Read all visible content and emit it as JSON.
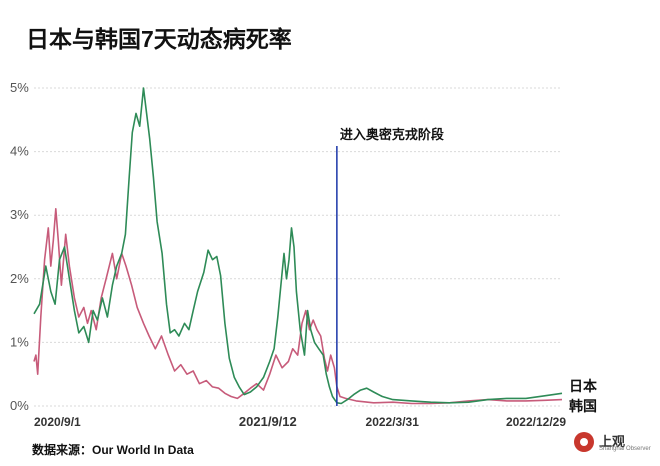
{
  "title": "日本与韩国7天动态病死率",
  "source": "数据来源：Our World In Data",
  "logo": {
    "name": "上观",
    "sub": "Shanghai Observer"
  },
  "colors": {
    "japan": "#2e8b57",
    "korea": "#c75b7a",
    "marker": "#1a35a8",
    "grid": "#d9d9d9"
  },
  "chart_data": {
    "type": "line",
    "title": "日本与韩国7天动态病死率",
    "x_ticks": [
      "2020/9/1",
      "2021/9/12",
      "2022/3/31",
      "2022/12/29"
    ],
    "y_ticks": [
      "0%",
      "1%",
      "2%",
      "3%",
      "4%",
      "5%"
    ],
    "ylim": [
      0,
      5.3
    ],
    "xlim": [
      "2020-09-01",
      "2022-12-29"
    ],
    "grid": true,
    "annotation": {
      "label": "进入奥密克戎阶段",
      "x": "2022-01-01"
    },
    "series": [
      {
        "name": "日本",
        "points": [
          [
            "2020-09-01",
            1.45
          ],
          [
            "2020-09-10",
            1.6
          ],
          [
            "2020-09-20",
            2.2
          ],
          [
            "2020-09-28",
            1.8
          ],
          [
            "2020-10-05",
            1.6
          ],
          [
            "2020-10-12",
            2.3
          ],
          [
            "2020-10-20",
            2.5
          ],
          [
            "2020-10-28",
            2.0
          ],
          [
            "2020-11-05",
            1.5
          ],
          [
            "2020-11-12",
            1.15
          ],
          [
            "2020-11-20",
            1.25
          ],
          [
            "2020-11-28",
            1.0
          ],
          [
            "2020-12-05",
            1.5
          ],
          [
            "2020-12-12",
            1.35
          ],
          [
            "2020-12-20",
            1.7
          ],
          [
            "2020-12-28",
            1.4
          ],
          [
            "2021-01-05",
            1.9
          ],
          [
            "2021-01-12",
            2.2
          ],
          [
            "2021-01-20",
            2.4
          ],
          [
            "2021-01-26",
            2.7
          ],
          [
            "2021-02-01",
            3.6
          ],
          [
            "2021-02-06",
            4.3
          ],
          [
            "2021-02-12",
            4.6
          ],
          [
            "2021-02-18",
            4.4
          ],
          [
            "2021-02-24",
            5.0
          ],
          [
            "2021-03-01",
            4.6
          ],
          [
            "2021-03-06",
            4.2
          ],
          [
            "2021-03-12",
            3.6
          ],
          [
            "2021-03-18",
            2.9
          ],
          [
            "2021-03-26",
            2.4
          ],
          [
            "2021-04-02",
            1.6
          ],
          [
            "2021-04-08",
            1.15
          ],
          [
            "2021-04-15",
            1.2
          ],
          [
            "2021-04-22",
            1.1
          ],
          [
            "2021-05-01",
            1.3
          ],
          [
            "2021-05-08",
            1.2
          ],
          [
            "2021-05-15",
            1.5
          ],
          [
            "2021-05-22",
            1.8
          ],
          [
            "2021-06-01",
            2.1
          ],
          [
            "2021-06-08",
            2.45
          ],
          [
            "2021-06-15",
            2.3
          ],
          [
            "2021-06-22",
            2.35
          ],
          [
            "2021-06-28",
            2.05
          ],
          [
            "2021-07-05",
            1.3
          ],
          [
            "2021-07-12",
            0.75
          ],
          [
            "2021-07-20",
            0.45
          ],
          [
            "2021-07-28",
            0.3
          ],
          [
            "2021-08-05",
            0.18
          ],
          [
            "2021-08-15",
            0.22
          ],
          [
            "2021-08-25",
            0.3
          ],
          [
            "2021-09-05",
            0.45
          ],
          [
            "2021-09-15",
            0.7
          ],
          [
            "2021-09-22",
            0.9
          ],
          [
            "2021-09-28",
            1.4
          ],
          [
            "2021-10-04",
            2.0
          ],
          [
            "2021-10-08",
            2.4
          ],
          [
            "2021-10-12",
            2.0
          ],
          [
            "2021-10-16",
            2.3
          ],
          [
            "2021-10-20",
            2.8
          ],
          [
            "2021-10-24",
            2.5
          ],
          [
            "2021-10-28",
            1.8
          ],
          [
            "2021-11-03",
            1.2
          ],
          [
            "2021-11-10",
            0.8
          ],
          [
            "2021-11-15",
            1.5
          ],
          [
            "2021-11-20",
            1.2
          ],
          [
            "2021-11-26",
            1.0
          ],
          [
            "2021-12-03",
            0.9
          ],
          [
            "2021-12-10",
            0.8
          ],
          [
            "2021-12-15",
            0.5
          ],
          [
            "2021-12-20",
            0.3
          ],
          [
            "2021-12-25",
            0.15
          ],
          [
            "2022-01-01",
            0.05
          ],
          [
            "2022-01-08",
            0.04
          ],
          [
            "2022-01-18",
            0.1
          ],
          [
            "2022-01-28",
            0.18
          ],
          [
            "2022-02-08",
            0.25
          ],
          [
            "2022-02-18",
            0.28
          ],
          [
            "2022-03-01",
            0.22
          ],
          [
            "2022-03-15",
            0.15
          ],
          [
            "2022-04-01",
            0.1
          ],
          [
            "2022-05-01",
            0.08
          ],
          [
            "2022-06-01",
            0.06
          ],
          [
            "2022-07-01",
            0.05
          ],
          [
            "2022-08-01",
            0.06
          ],
          [
            "2022-09-01",
            0.1
          ],
          [
            "2022-10-01",
            0.12
          ],
          [
            "2022-11-01",
            0.12
          ],
          [
            "2022-12-01",
            0.16
          ],
          [
            "2022-12-29",
            0.2
          ]
        ]
      },
      {
        "name": "韩国",
        "points": [
          [
            "2020-09-01",
            0.7
          ],
          [
            "2020-09-04",
            0.8
          ],
          [
            "2020-09-07",
            0.5
          ],
          [
            "2020-09-12",
            1.4
          ],
          [
            "2020-09-18",
            2.3
          ],
          [
            "2020-09-24",
            2.8
          ],
          [
            "2020-09-28",
            2.2
          ],
          [
            "2020-10-02",
            2.6
          ],
          [
            "2020-10-06",
            3.1
          ],
          [
            "2020-10-10",
            2.6
          ],
          [
            "2020-10-15",
            1.9
          ],
          [
            "2020-10-22",
            2.7
          ],
          [
            "2020-10-28",
            2.2
          ],
          [
            "2020-11-05",
            1.7
          ],
          [
            "2020-11-12",
            1.4
          ],
          [
            "2020-11-20",
            1.55
          ],
          [
            "2020-11-26",
            1.3
          ],
          [
            "2020-12-02",
            1.5
          ],
          [
            "2020-12-10",
            1.2
          ],
          [
            "2020-12-18",
            1.7
          ],
          [
            "2020-12-26",
            2.0
          ],
          [
            "2021-01-05",
            2.4
          ],
          [
            "2021-01-12",
            2.0
          ],
          [
            "2021-01-20",
            2.4
          ],
          [
            "2021-01-27",
            2.2
          ],
          [
            "2021-02-05",
            1.9
          ],
          [
            "2021-02-14",
            1.55
          ],
          [
            "2021-02-24",
            1.3
          ],
          [
            "2021-03-05",
            1.1
          ],
          [
            "2021-03-15",
            0.9
          ],
          [
            "2021-03-25",
            1.1
          ],
          [
            "2021-04-05",
            0.8
          ],
          [
            "2021-04-15",
            0.55
          ],
          [
            "2021-04-25",
            0.65
          ],
          [
            "2021-05-05",
            0.5
          ],
          [
            "2021-05-15",
            0.55
          ],
          [
            "2021-05-25",
            0.35
          ],
          [
            "2021-06-05",
            0.4
          ],
          [
            "2021-06-15",
            0.3
          ],
          [
            "2021-06-25",
            0.28
          ],
          [
            "2021-07-05",
            0.2
          ],
          [
            "2021-07-15",
            0.15
          ],
          [
            "2021-07-25",
            0.12
          ],
          [
            "2021-08-05",
            0.2
          ],
          [
            "2021-08-15",
            0.28
          ],
          [
            "2021-08-25",
            0.35
          ],
          [
            "2021-09-05",
            0.25
          ],
          [
            "2021-09-15",
            0.5
          ],
          [
            "2021-09-25",
            0.8
          ],
          [
            "2021-10-05",
            0.6
          ],
          [
            "2021-10-15",
            0.7
          ],
          [
            "2021-10-22",
            0.9
          ],
          [
            "2021-10-30",
            0.8
          ],
          [
            "2021-11-06",
            1.3
          ],
          [
            "2021-11-12",
            1.5
          ],
          [
            "2021-11-18",
            1.2
          ],
          [
            "2021-11-24",
            1.35
          ],
          [
            "2021-11-30",
            1.2
          ],
          [
            "2021-12-06",
            1.1
          ],
          [
            "2021-12-12",
            0.75
          ],
          [
            "2021-12-17",
            0.55
          ],
          [
            "2021-12-22",
            0.8
          ],
          [
            "2021-12-28",
            0.6
          ],
          [
            "2022-01-01",
            0.3
          ],
          [
            "2022-01-06",
            0.15
          ],
          [
            "2022-01-15",
            0.12
          ],
          [
            "2022-02-01",
            0.08
          ],
          [
            "2022-03-01",
            0.05
          ],
          [
            "2022-04-01",
            0.06
          ],
          [
            "2022-05-01",
            0.04
          ],
          [
            "2022-06-01",
            0.04
          ],
          [
            "2022-07-01",
            0.05
          ],
          [
            "2022-08-01",
            0.08
          ],
          [
            "2022-09-01",
            0.1
          ],
          [
            "2022-10-01",
            0.08
          ],
          [
            "2022-11-01",
            0.08
          ],
          [
            "2022-12-01",
            0.09
          ],
          [
            "2022-12-29",
            0.1
          ]
        ]
      }
    ]
  }
}
